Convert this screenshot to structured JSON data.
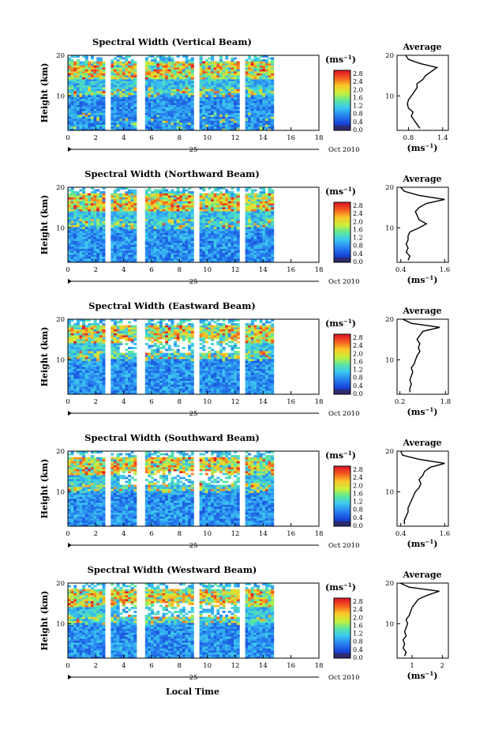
{
  "figure": {
    "xlabel": "Local Time",
    "date_label": "Oct 2010",
    "day_label": "25",
    "ylabel": "Height (km)",
    "colorbar_unit_main": "(ms",
    "colorbar_unit_exp": "−1",
    "avg_unit_main": "(ms",
    "avg_unit_exp": "−1",
    "avg_title": "Average"
  },
  "chart_data": [
    {
      "type": "heatmap",
      "title": "Spectral Width (Vertical Beam)",
      "xlabel": "Local Time",
      "ylabel": "Height (km)",
      "x_ticks": [
        "0",
        "2",
        "4",
        "6",
        "8",
        "10",
        "12",
        "14",
        "16",
        "18"
      ],
      "y_ticks": [
        "10",
        "20"
      ],
      "xlim": [
        0,
        18
      ],
      "ylim": [
        1.5,
        20
      ],
      "data_gaps": [
        [
          3.0,
          3.5
        ],
        [
          5.5,
          6.0
        ],
        [
          10.0,
          10.5
        ],
        [
          13.5,
          14.0
        ]
      ],
      "colorbar": {
        "unit": "ms-1",
        "ticks": [
          "0.0",
          "0.4",
          "0.8",
          "1.2",
          "1.6",
          "2.0",
          "2.4",
          "2.8"
        ],
        "range": [
          0,
          3.0
        ]
      },
      "average_profile": {
        "title": "Average",
        "xlabel": "(ms-1)",
        "x_ticks": [
          "0.8",
          "1.4"
        ],
        "y_ticks": [
          "10",
          "20"
        ],
        "xlim": [
          0.6,
          1.5
        ],
        "height_km": [
          2,
          3,
          4,
          5,
          6,
          7,
          8,
          9,
          10,
          11,
          12,
          13,
          14,
          15,
          16,
          17,
          18,
          19,
          20
        ],
        "width": [
          1.0,
          0.95,
          0.9,
          0.85,
          0.88,
          0.8,
          0.78,
          0.8,
          0.85,
          0.9,
          0.95,
          0.95,
          1.05,
          1.1,
          1.2,
          1.3,
          1.0,
          0.8,
          0.75
        ]
      }
    },
    {
      "type": "heatmap",
      "title": "Spectral Width (Northward Beam)",
      "xlabel": "Local Time",
      "ylabel": "Height (km)",
      "x_ticks": [
        "0",
        "2",
        "4",
        "6",
        "8",
        "10",
        "12",
        "14",
        "16",
        "18"
      ],
      "y_ticks": [
        "10",
        "20"
      ],
      "xlim": [
        0,
        18
      ],
      "ylim": [
        1.5,
        20
      ],
      "data_gaps": [
        [
          3.0,
          3.5
        ],
        [
          5.5,
          6.0
        ],
        [
          10.0,
          10.5
        ],
        [
          13.5,
          14.0
        ]
      ],
      "colorbar": {
        "unit": "ms-1",
        "ticks": [
          "0.0",
          "0.4",
          "0.8",
          "1.2",
          "1.6",
          "2.0",
          "2.4",
          "2.8"
        ],
        "range": [
          0,
          3.0
        ]
      },
      "average_profile": {
        "title": "Average",
        "xlabel": "(ms-1)",
        "x_ticks": [
          "0.4",
          "1.6"
        ],
        "y_ticks": [
          "10",
          "20"
        ],
        "xlim": [
          0.3,
          1.7
        ],
        "height_km": [
          2,
          3,
          4,
          5,
          6,
          7,
          8,
          9,
          10,
          11,
          12,
          13,
          14,
          15,
          16,
          17,
          18,
          19,
          20
        ],
        "width": [
          0.6,
          0.65,
          0.55,
          0.6,
          0.55,
          0.6,
          0.6,
          0.65,
          0.9,
          1.1,
          0.9,
          0.85,
          0.8,
          0.9,
          1.1,
          1.6,
          0.9,
          0.5,
          0.4
        ]
      }
    },
    {
      "type": "heatmap",
      "title": "Spectral Width (Eastward Beam)",
      "xlabel": "Local Time",
      "ylabel": "Height (km)",
      "x_ticks": [
        "0",
        "2",
        "4",
        "6",
        "8",
        "10",
        "12",
        "14",
        "16",
        "18"
      ],
      "y_ticks": [
        "10",
        "20"
      ],
      "xlim": [
        0,
        18
      ],
      "ylim": [
        1.5,
        20
      ],
      "data_gaps": [
        [
          3.0,
          3.5
        ],
        [
          5.5,
          6.0
        ],
        [
          10.0,
          10.5
        ],
        [
          13.5,
          14.0
        ]
      ],
      "colorbar": {
        "unit": "ms-1",
        "ticks": [
          "0.0",
          "0.4",
          "0.8",
          "1.2",
          "1.6",
          "2.0",
          "2.4",
          "2.8"
        ],
        "range": [
          0,
          3.0
        ]
      },
      "average_profile": {
        "title": "Average",
        "xlabel": "(ms-1)",
        "x_ticks": [
          "0.2",
          "1.8"
        ],
        "y_ticks": [
          "10",
          "20"
        ],
        "xlim": [
          0.1,
          1.9
        ],
        "height_km": [
          2,
          3,
          4,
          5,
          6,
          7,
          8,
          9,
          10,
          11,
          12,
          13,
          14,
          15,
          16,
          17,
          18,
          19,
          20
        ],
        "width": [
          0.55,
          0.55,
          0.6,
          0.55,
          0.6,
          0.65,
          0.6,
          0.7,
          0.75,
          0.8,
          0.9,
          0.85,
          0.9,
          0.8,
          0.9,
          1.0,
          1.6,
          0.6,
          0.3
        ]
      }
    },
    {
      "type": "heatmap",
      "title": "Spectral Width (Southward Beam)",
      "xlabel": "Local Time",
      "ylabel": "Height (km)",
      "x_ticks": [
        "0",
        "2",
        "4",
        "6",
        "8",
        "10",
        "12",
        "14",
        "16",
        "18"
      ],
      "y_ticks": [
        "10",
        "20"
      ],
      "xlim": [
        0,
        18
      ],
      "ylim": [
        1.5,
        20
      ],
      "data_gaps": [
        [
          3.0,
          3.5
        ],
        [
          5.5,
          6.0
        ],
        [
          10.0,
          10.5
        ],
        [
          13.5,
          14.0
        ]
      ],
      "colorbar": {
        "unit": "ms-1",
        "ticks": [
          "0.0",
          "0.4",
          "0.8",
          "1.2",
          "1.6",
          "2.0",
          "2.4",
          "2.8"
        ],
        "range": [
          0,
          3.0
        ]
      },
      "average_profile": {
        "title": "Average",
        "xlabel": "(ms-1)",
        "x_ticks": [
          "0.4",
          "1.6"
        ],
        "y_ticks": [
          "10",
          "20"
        ],
        "xlim": [
          0.3,
          1.7
        ],
        "height_km": [
          2,
          3,
          4,
          5,
          6,
          7,
          8,
          9,
          10,
          11,
          12,
          13,
          14,
          15,
          16,
          17,
          18,
          19,
          20
        ],
        "width": [
          0.5,
          0.5,
          0.55,
          0.6,
          0.6,
          0.65,
          0.7,
          0.75,
          0.8,
          0.9,
          0.95,
          0.9,
          1.0,
          1.05,
          1.2,
          1.6,
          0.9,
          0.45,
          0.4
        ]
      }
    },
    {
      "type": "heatmap",
      "title": "Spectral Width (Westward Beam)",
      "xlabel": "Local Time",
      "ylabel": "Height (km)",
      "x_ticks": [
        "0",
        "2",
        "4",
        "6",
        "8",
        "10",
        "12",
        "14",
        "16",
        "18"
      ],
      "y_ticks": [
        "10",
        "20"
      ],
      "xlim": [
        0,
        18
      ],
      "ylim": [
        1.5,
        20
      ],
      "data_gaps": [
        [
          3.0,
          3.5
        ],
        [
          5.5,
          6.0
        ],
        [
          10.0,
          10.5
        ],
        [
          13.5,
          14.0
        ]
      ],
      "colorbar": {
        "unit": "ms-1",
        "ticks": [
          "0.0",
          "0.4",
          "0.8",
          "1.2",
          "1.6",
          "2.0",
          "2.4",
          "2.8"
        ],
        "range": [
          0,
          3.0
        ]
      },
      "average_profile": {
        "title": "Average",
        "xlabel": "(ms-1)",
        "x_ticks": [
          "1",
          "2"
        ],
        "y_ticks": [
          "10",
          "20"
        ],
        "xlim": [
          0.5,
          2.2
        ],
        "height_km": [
          2,
          3,
          4,
          5,
          6,
          7,
          8,
          9,
          10,
          11,
          12,
          13,
          14,
          15,
          16,
          17,
          18,
          19,
          20
        ],
        "width": [
          0.75,
          0.8,
          0.7,
          0.75,
          0.7,
          0.8,
          0.75,
          0.8,
          0.85,
          0.8,
          0.9,
          0.95,
          1.0,
          1.1,
          1.2,
          1.5,
          1.9,
          0.9,
          0.6
        ]
      }
    }
  ]
}
